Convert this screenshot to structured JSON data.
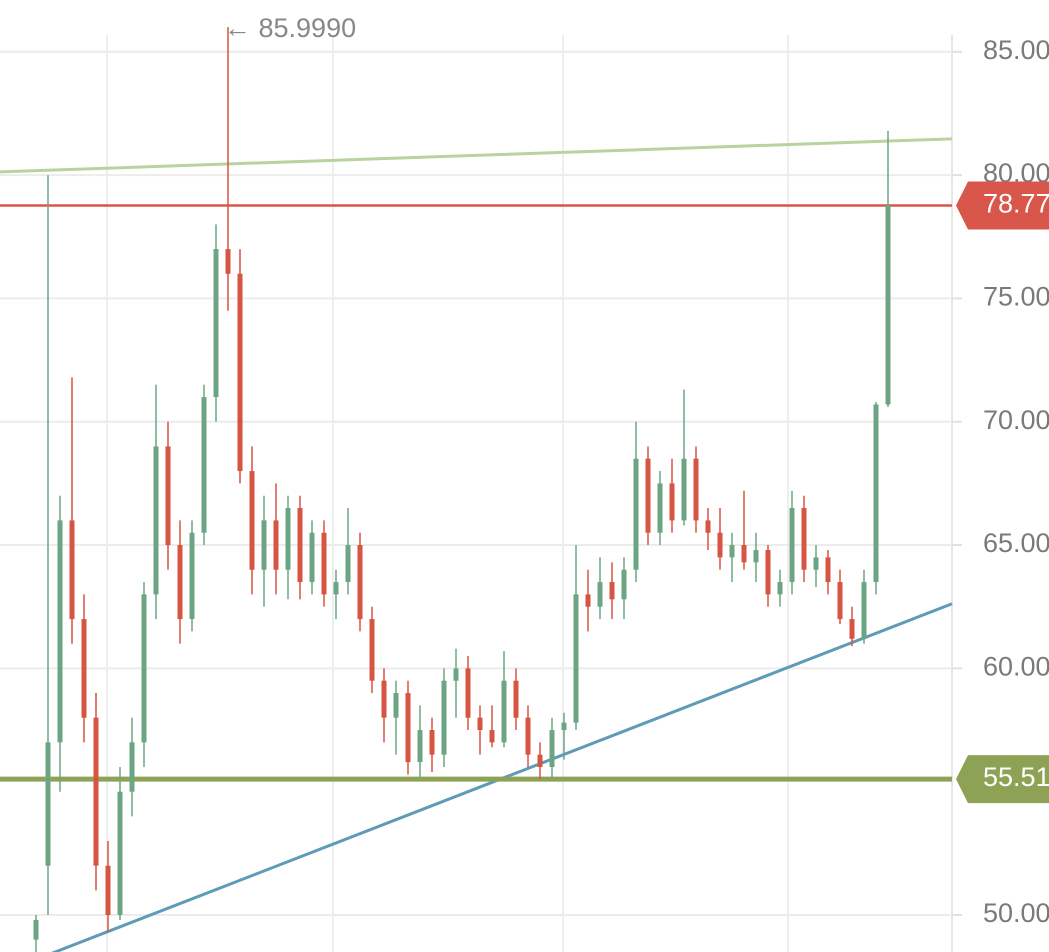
{
  "chart_data": {
    "type": "candlestick",
    "annotation": "← 85.9990",
    "up_color": "#6ba583",
    "down_color": "#d75442",
    "ylim": [
      48.5,
      87.1
    ],
    "yticks": [
      {
        "value": 50,
        "label": "50.00"
      },
      {
        "value": 60,
        "label": "60.00"
      },
      {
        "value": 65,
        "label": "65.00"
      },
      {
        "value": 70,
        "label": "70.00"
      },
      {
        "value": 75,
        "label": "75.00"
      },
      {
        "value": 80,
        "label": "80.00"
      },
      {
        "value": 85,
        "label": "85.00"
      }
    ],
    "grid": true,
    "open": [
      49,
      52,
      57,
      66,
      62,
      58,
      52,
      50,
      55,
      57,
      63,
      69,
      65,
      62,
      65.5,
      71,
      77,
      76,
      68,
      64,
      66,
      64,
      66.5,
      63.5,
      65.5,
      63,
      63.5,
      65,
      62,
      59.5,
      58,
      59,
      56.2,
      57.5,
      56.5,
      59.5,
      60,
      58,
      57.5,
      57,
      59.5,
      58,
      56.5,
      56,
      57.5,
      57.8,
      63,
      62.5,
      63.5,
      62.8,
      64,
      68.5,
      65.5,
      67.5,
      66,
      68.5,
      66,
      65.5,
      64.5,
      65,
      64.3,
      64.8,
      63,
      63.5,
      66.5,
      64,
      64.5,
      63.5,
      62,
      61.2,
      63.5,
      70.7
    ],
    "high": [
      50,
      80,
      67,
      71.8,
      63,
      59,
      53,
      56,
      58,
      63.5,
      71.5,
      70,
      66,
      66,
      71.5,
      78,
      85.999,
      77,
      69,
      67,
      67.5,
      67,
      67,
      66,
      66,
      64,
      66.5,
      65.5,
      62.5,
      60,
      59.5,
      59.5,
      58.5,
      58,
      60,
      60.8,
      60.5,
      58.5,
      58.5,
      60.7,
      60,
      58.5,
      57,
      58,
      58.2,
      65,
      64,
      64.5,
      64.3,
      64.5,
      70,
      69,
      68,
      68.5,
      71.3,
      69,
      66.5,
      66.5,
      65.5,
      67.2,
      65.5,
      65,
      64,
      67.2,
      67,
      65,
      64.8,
      64,
      62.5,
      64,
      70.8,
      81.8
    ],
    "low": [
      48.5,
      50,
      55,
      61,
      57,
      51,
      49.3,
      49.8,
      54,
      56,
      62,
      64,
      61,
      61.5,
      65,
      70,
      74.5,
      67.5,
      63,
      62.5,
      63,
      62.8,
      62.8,
      63,
      62.5,
      62,
      63,
      61.5,
      59,
      57,
      56.5,
      55.7,
      55.6,
      55.8,
      56,
      58,
      57.5,
      56.5,
      56.8,
      56.8,
      57.5,
      56,
      55.5,
      55.5,
      56.3,
      57.5,
      61.5,
      62,
      62,
      62,
      63.5,
      65,
      65,
      65.5,
      65.8,
      65.5,
      64.8,
      64,
      63.5,
      64,
      63.5,
      62.5,
      62.5,
      63,
      63.5,
      63.3,
      63,
      61.8,
      60.9,
      61,
      63,
      70.6
    ],
    "close": [
      49.8,
      57,
      66,
      62,
      58,
      52,
      50,
      55,
      57,
      63,
      69,
      65,
      62,
      65.5,
      71,
      77,
      76,
      68,
      64,
      66,
      64,
      66.5,
      63.5,
      65.5,
      63,
      63.5,
      65,
      62,
      59.5,
      58,
      59,
      56.2,
      57.5,
      56.5,
      59.5,
      60,
      58,
      57.5,
      57,
      59.5,
      58,
      56.5,
      56,
      57.5,
      57.8,
      63,
      62.5,
      63.5,
      62.8,
      64,
      68.5,
      65.5,
      67.5,
      66,
      68.5,
      66,
      65.5,
      64.5,
      65,
      64.3,
      64.8,
      63,
      63.5,
      66.5,
      64,
      64.5,
      63.5,
      62,
      61.2,
      63.5,
      70.7,
      78.77
    ],
    "price_lines": [
      {
        "value": 78.77,
        "color": "#d9574a"
      },
      {
        "value": 55.51,
        "color": "#8ea256"
      }
    ],
    "trend_lines": [
      {
        "start": 80.13,
        "end": 81.47,
        "color": "#b9d2a0"
      },
      {
        "start": 47.63,
        "end": 62.62,
        "color": "#5d9bb7"
      }
    ]
  }
}
